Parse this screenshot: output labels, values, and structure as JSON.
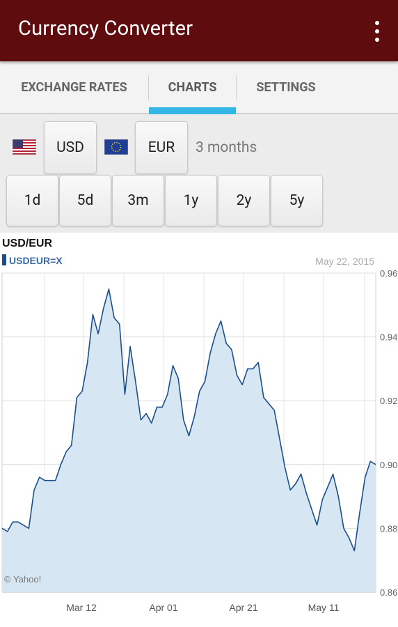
{
  "app": {
    "title": "Currency Converter",
    "menu_icon": "overflow-menu-icon"
  },
  "tabs": [
    {
      "label": "EXCHANGE RATES",
      "active": false
    },
    {
      "label": "CHARTS",
      "active": true
    },
    {
      "label": "SETTINGS",
      "active": false
    }
  ],
  "accent_color": "#33b5e5",
  "appbar_color": "#5e0c0e",
  "currency_from": {
    "code": "USD",
    "flag": "us-flag-icon"
  },
  "currency_to": {
    "code": "EUR",
    "flag": "eu-flag-icon"
  },
  "period_label": "3 months",
  "ranges": [
    "1d",
    "5d",
    "3m",
    "1y",
    "2y",
    "5y"
  ],
  "chart_data": {
    "type": "area",
    "title": "USD/EUR",
    "series_name": "USDEUR=X",
    "date": "May 22, 2015",
    "credit": "© Yahoo!",
    "y_ticks": [
      "0.96",
      "0.94",
      "0.92",
      "0.90",
      "0.88",
      "0.86"
    ],
    "x_ticks": [
      "Mar 12",
      "Apr 01",
      "Apr 21",
      "May 11"
    ],
    "ylim": [
      0.86,
      0.96
    ],
    "grid": true,
    "values": [
      0.88,
      0.879,
      0.882,
      0.882,
      0.881,
      0.88,
      0.892,
      0.896,
      0.895,
      0.895,
      0.895,
      0.9,
      0.904,
      0.906,
      0.921,
      0.923,
      0.932,
      0.947,
      0.941,
      0.949,
      0.955,
      0.946,
      0.944,
      0.922,
      0.937,
      0.926,
      0.914,
      0.916,
      0.913,
      0.918,
      0.918,
      0.922,
      0.931,
      0.927,
      0.914,
      0.909,
      0.915,
      0.923,
      0.926,
      0.935,
      0.941,
      0.945,
      0.938,
      0.936,
      0.928,
      0.925,
      0.93,
      0.93,
      0.932,
      0.921,
      0.919,
      0.917,
      0.908,
      0.899,
      0.892,
      0.894,
      0.897,
      0.891,
      0.886,
      0.881,
      0.889,
      0.893,
      0.897,
      0.89,
      0.88,
      0.877,
      0.873,
      0.885,
      0.896,
      0.901,
      0.9
    ]
  }
}
